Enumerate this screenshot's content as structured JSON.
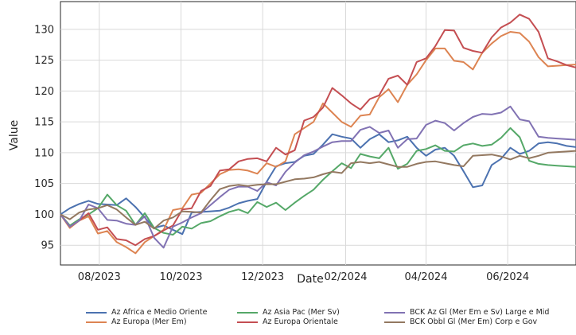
{
  "chart_data": {
    "type": "line",
    "xlabel": "Date",
    "ylabel": "Value",
    "x": [
      "2023-07-03",
      "2023-07-10",
      "2023-07-17",
      "2023-07-24",
      "2023-07-31",
      "2023-08-07",
      "2023-08-14",
      "2023-08-21",
      "2023-08-28",
      "2023-09-04",
      "2023-09-11",
      "2023-09-18",
      "2023-09-25",
      "2023-10-02",
      "2023-10-09",
      "2023-10-16",
      "2023-10-23",
      "2023-10-30",
      "2023-11-06",
      "2023-11-13",
      "2023-11-20",
      "2023-11-27",
      "2023-12-04",
      "2023-12-11",
      "2023-12-18",
      "2023-12-25",
      "2024-01-01",
      "2024-01-08",
      "2024-01-15",
      "2024-01-22",
      "2024-01-29",
      "2024-02-05",
      "2024-02-12",
      "2024-02-19",
      "2024-02-26",
      "2024-03-04",
      "2024-03-11",
      "2024-03-18",
      "2024-03-25",
      "2024-04-01",
      "2024-04-08",
      "2024-04-15",
      "2024-04-22",
      "2024-04-29",
      "2024-05-06",
      "2024-05-13",
      "2024-05-20",
      "2024-05-27",
      "2024-06-03",
      "2024-06-10",
      "2024-06-17",
      "2024-06-24",
      "2024-07-01",
      "2024-07-08",
      "2024-07-15",
      "2024-07-22"
    ],
    "x_ticks": [
      "08/2023",
      "10/2023",
      "12/2023",
      "02/2024",
      "04/2024",
      "06/2024"
    ],
    "x_tick_dates": [
      "2023-08-01",
      "2023-10-01",
      "2023-12-01",
      "2024-02-01",
      "2024-04-01",
      "2024-06-01"
    ],
    "y_ticks": [
      95,
      100,
      105,
      110,
      115,
      120,
      125,
      130
    ],
    "ylim": [
      91.8,
      134.5
    ],
    "grid": true,
    "legend_position": "bottom",
    "series": [
      {
        "name": "Az Africa e Medio Oriente",
        "color": "#4c72b0",
        "values": [
          100,
          101,
          101.7,
          102.2,
          101.7,
          101.6,
          101.5,
          102.6,
          101.2,
          99.5,
          97.8,
          98.2,
          97.5,
          96.8,
          100.3,
          100.4,
          100.5,
          100.6,
          101.1,
          101.8,
          102.2,
          102.5,
          105.3,
          107.8,
          108.3,
          108.5,
          109.5,
          109.8,
          111.3,
          113,
          112.6,
          112.3,
          110.8,
          112.2,
          113,
          111.7,
          112,
          112.6,
          110.8,
          109.5,
          110.5,
          110.8,
          109.5,
          107,
          104.4,
          104.7,
          108,
          109,
          110.8,
          109.8,
          110.3,
          111.5,
          111.7,
          111.5,
          111.1,
          110.9
        ]
      },
      {
        "name": "Az Europa (Mer Em)",
        "color": "#dd8452",
        "values": [
          100,
          97.8,
          99,
          99.7,
          96.9,
          97.3,
          95.5,
          94.7,
          93.7,
          95.5,
          96.5,
          97.5,
          100.7,
          101,
          103.2,
          103.5,
          105,
          106.5,
          107.2,
          107.3,
          107.1,
          106.6,
          108.3,
          107.7,
          108.6,
          113,
          114,
          115,
          118,
          116.5,
          115,
          114.2,
          116,
          116.2,
          119,
          120.3,
          118.2,
          121,
          122.7,
          125,
          126.9,
          126.9,
          124.9,
          124.7,
          123.5,
          126.2,
          127.7,
          128.9,
          129.6,
          129.4,
          128,
          125.5,
          124,
          124.1,
          124.2,
          124.3
        ]
      },
      {
        "name": "Az Asia Pac (Mer Sv)",
        "color": "#55a868",
        "values": [
          100,
          98.2,
          99.2,
          100,
          101,
          103.2,
          101.5,
          100.6,
          98.3,
          100.2,
          97.8,
          97,
          96.7,
          98,
          97.7,
          98.6,
          98.9,
          99.7,
          100.4,
          100.8,
          100.2,
          102,
          101.2,
          101.9,
          100.7,
          101.9,
          103,
          104,
          105.6,
          107,
          108.3,
          107.5,
          109.8,
          109.4,
          109.1,
          110.8,
          107.4,
          108.2,
          110.3,
          110.6,
          111.2,
          110.3,
          110.2,
          111.2,
          111.5,
          111.1,
          111.3,
          112.4,
          114,
          112.5,
          108.7,
          108.2,
          108,
          107.9,
          107.8,
          107.7
        ]
      },
      {
        "name": "Az Europa Orientale",
        "color": "#c44e52",
        "values": [
          100,
          98,
          99,
          100.2,
          97.5,
          97.9,
          96,
          95.8,
          95,
          96,
          96.5,
          97.4,
          98.2,
          100.8,
          101,
          103.8,
          104.6,
          107.1,
          107.3,
          108.6,
          109,
          109.1,
          108.6,
          110.8,
          109.7,
          110.4,
          115.2,
          115.8,
          117.3,
          120.5,
          119.3,
          118,
          117,
          118.7,
          119.3,
          122,
          122.5,
          121,
          124.7,
          125.3,
          127.3,
          129.9,
          129.8,
          127,
          126.5,
          126.2,
          128.7,
          130.3,
          131.1,
          132.4,
          131.7,
          129.6,
          125.3,
          124.8,
          124.2,
          123.8
        ]
      },
      {
        "name": "BCK Az Gl (Mer Em e Sv) Large e Mid",
        "color": "#8172b3",
        "values": [
          100,
          98,
          99,
          101.6,
          101,
          99.1,
          99,
          98.5,
          98.3,
          99.7,
          96.2,
          94.6,
          98,
          98.7,
          99.5,
          100.2,
          101.5,
          102.8,
          104,
          104.5,
          104.5,
          103.8,
          105.2,
          104.7,
          106.9,
          108.4,
          109.6,
          110.2,
          111,
          111.7,
          111.9,
          111.9,
          113.7,
          114.2,
          113.2,
          113.6,
          110.8,
          112.2,
          112.3,
          114.5,
          115.2,
          114.8,
          113.6,
          114.8,
          115.8,
          116.3,
          116.2,
          116.5,
          117.5,
          115.4,
          115.1,
          112.6,
          112.4,
          112.3,
          112.2,
          112.1
        ]
      },
      {
        "name": "BCK Obbl Gl (Mer Em) Corp e Gov",
        "color": "#937860",
        "values": [
          100,
          99.2,
          100.3,
          100.8,
          101,
          101.5,
          100.8,
          99.5,
          98.3,
          98.8,
          97.7,
          99,
          99.5,
          100.5,
          100.4,
          100.3,
          102.3,
          104.1,
          104.6,
          104.8,
          104.6,
          104.8,
          104.9,
          104.9,
          105.3,
          105.7,
          105.8,
          106,
          106.5,
          106.9,
          106.7,
          108.3,
          108.5,
          108.3,
          108.5,
          108.1,
          107.7,
          107.7,
          108.2,
          108.5,
          108.6,
          108.3,
          108,
          107.8,
          109.5,
          109.6,
          109.7,
          109.4,
          108.9,
          109.5,
          109.1,
          109.5,
          110,
          110.1,
          110.2,
          110.3
        ]
      }
    ]
  }
}
